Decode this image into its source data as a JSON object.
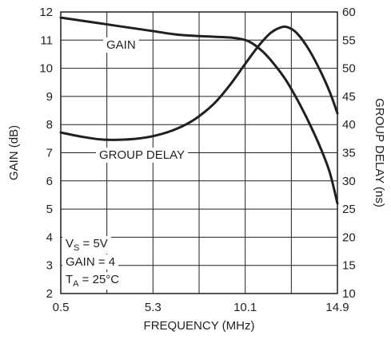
{
  "chart_data": {
    "type": "line",
    "title": "",
    "xlabel": "FREQUENCY (MHz)",
    "ylabel": "GAIN (dB)",
    "y2label": "GROUP DELAY (ns)",
    "xlim": [
      0.5,
      14.9
    ],
    "ylim": [
      2,
      12
    ],
    "y2lim": [
      10,
      60
    ],
    "x_ticks": [
      0.5,
      5.3,
      10.1,
      14.9
    ],
    "x_tick_labels": [
      "0.5",
      "5.3",
      "10.1",
      "14.9"
    ],
    "y_ticks": [
      2,
      3,
      4,
      5,
      6,
      7,
      8,
      9,
      10,
      11,
      12
    ],
    "y_tick_labels": [
      "2",
      "3",
      "4",
      "5",
      "6",
      "7",
      "8",
      "9",
      "10",
      "11",
      "12"
    ],
    "y2_ticks": [
      10,
      15,
      20,
      25,
      30,
      35,
      40,
      45,
      50,
      55,
      60
    ],
    "y2_tick_labels": [
      "10",
      "15",
      "20",
      "25",
      "30",
      "35",
      "40",
      "45",
      "50",
      "55",
      "60"
    ],
    "grid": true,
    "series": [
      {
        "name": "GAIN",
        "axis": "left",
        "x": [
          0.5,
          1.5,
          2.5,
          3.5,
          4.5,
          5.5,
          6.5,
          7.5,
          8.5,
          9.5,
          10.3,
          11.0,
          11.6,
          12.2,
          12.8,
          13.4,
          14.0,
          14.5,
          14.9
        ],
        "y": [
          11.8,
          11.7,
          11.6,
          11.5,
          11.4,
          11.3,
          11.2,
          11.15,
          11.12,
          11.08,
          10.95,
          10.6,
          10.15,
          9.6,
          8.9,
          8.1,
          7.2,
          6.3,
          5.2
        ]
      },
      {
        "name": "GROUP DELAY",
        "axis": "right",
        "x": [
          0.5,
          1.5,
          2.5,
          3.5,
          4.5,
          5.5,
          6.5,
          7.5,
          8.5,
          9.3,
          10.1,
          10.8,
          11.4,
          11.9,
          12.3,
          12.8,
          13.4,
          14.0,
          14.5,
          14.9
        ],
        "y": [
          38.6,
          37.9,
          37.4,
          37.3,
          37.5,
          38.1,
          39.2,
          41.0,
          43.8,
          47.0,
          50.8,
          54.0,
          56.2,
          57.2,
          57.3,
          56.2,
          53.4,
          49.6,
          45.8,
          42.0
        ]
      }
    ],
    "annotations": {
      "gain_label": "GAIN",
      "delay_label": "GROUP DELAY",
      "cond_vs_main": "V",
      "cond_vs_sub": "S",
      "cond_vs_val": " = 5V",
      "cond_gain": "GAIN = 4",
      "cond_ta_main": "T",
      "cond_ta_sub": "A",
      "cond_ta_val": " = 25°C"
    },
    "colors": {
      "curve": "#231f20",
      "grid": "#231f20",
      "text": "#231f20"
    }
  }
}
